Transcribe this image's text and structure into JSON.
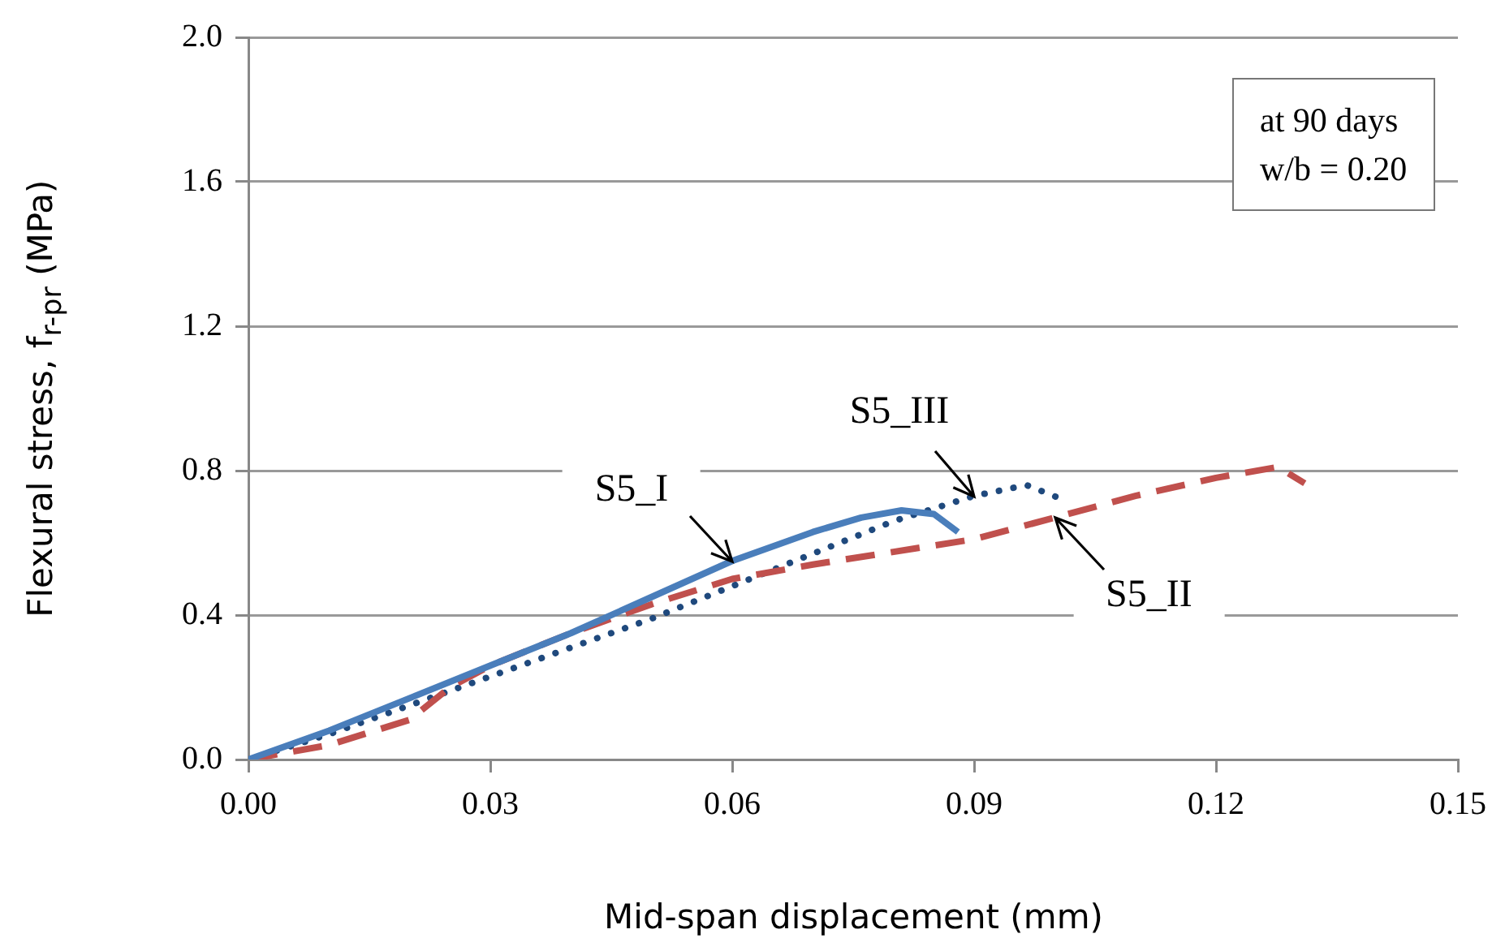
{
  "chart_data": {
    "type": "line",
    "xlabel": "Mid-span displacement (mm)",
    "ylabel": "Flexural stress, f$_{r-pr}$ (MPa)",
    "xlim": [
      0,
      0.15
    ],
    "ylim": [
      0,
      2.0
    ],
    "xticks": [
      {
        "value": 0,
        "label": "0.00"
      },
      {
        "value": 0.03,
        "label": "0.03"
      },
      {
        "value": 0.06,
        "label": "0.06"
      },
      {
        "value": 0.09,
        "label": "0.09"
      },
      {
        "value": 0.12,
        "label": "0.12"
      },
      {
        "value": 0.15,
        "label": "0.15"
      }
    ],
    "yticks": [
      {
        "value": 0,
        "label": "0.0"
      },
      {
        "value": 0.4,
        "label": "0.4"
      },
      {
        "value": 0.8,
        "label": "0.8"
      },
      {
        "value": 1.2,
        "label": "1.2"
      },
      {
        "value": 1.6,
        "label": "1.6"
      },
      {
        "value": 2.0,
        "label": "2.0"
      }
    ],
    "grid": "y",
    "legend": false,
    "marker": "none",
    "series": [
      {
        "name": "S5_I",
        "color": "#4a7ebb",
        "line_style": "solid",
        "x": [
          0,
          0.01,
          0.02,
          0.03,
          0.04,
          0.05,
          0.06,
          0.07,
          0.076,
          0.081,
          0.085,
          0.088
        ],
        "values": [
          0,
          0.08,
          0.17,
          0.26,
          0.35,
          0.45,
          0.55,
          0.63,
          0.67,
          0.69,
          0.68,
          0.63
        ]
      },
      {
        "name": "S5_II",
        "color": "#c0504d",
        "line_style": "dashed",
        "x": [
          0,
          0.01,
          0.02,
          0.025,
          0.03,
          0.04,
          0.05,
          0.06,
          0.07,
          0.08,
          0.09,
          0.095,
          0.1,
          0.11,
          0.12,
          0.1277,
          0.131
        ],
        "values": [
          0,
          0.04,
          0.11,
          0.2,
          0.26,
          0.35,
          0.43,
          0.5,
          0.54,
          0.575,
          0.61,
          0.64,
          0.67,
          0.73,
          0.78,
          0.81,
          0.765
        ]
      },
      {
        "name": "S5_III",
        "color": "#1f497d",
        "line_style": "dotted",
        "x": [
          0,
          0.01,
          0.02,
          0.03,
          0.04,
          0.05,
          0.06,
          0.07,
          0.08,
          0.09,
          0.0965,
          0.101
        ],
        "values": [
          0,
          0.07,
          0.15,
          0.23,
          0.31,
          0.39,
          0.48,
          0.57,
          0.66,
          0.73,
          0.76,
          0.72
        ]
      }
    ],
    "annotations": [
      "at 90 days",
      "w/b = 0.20"
    ]
  }
}
